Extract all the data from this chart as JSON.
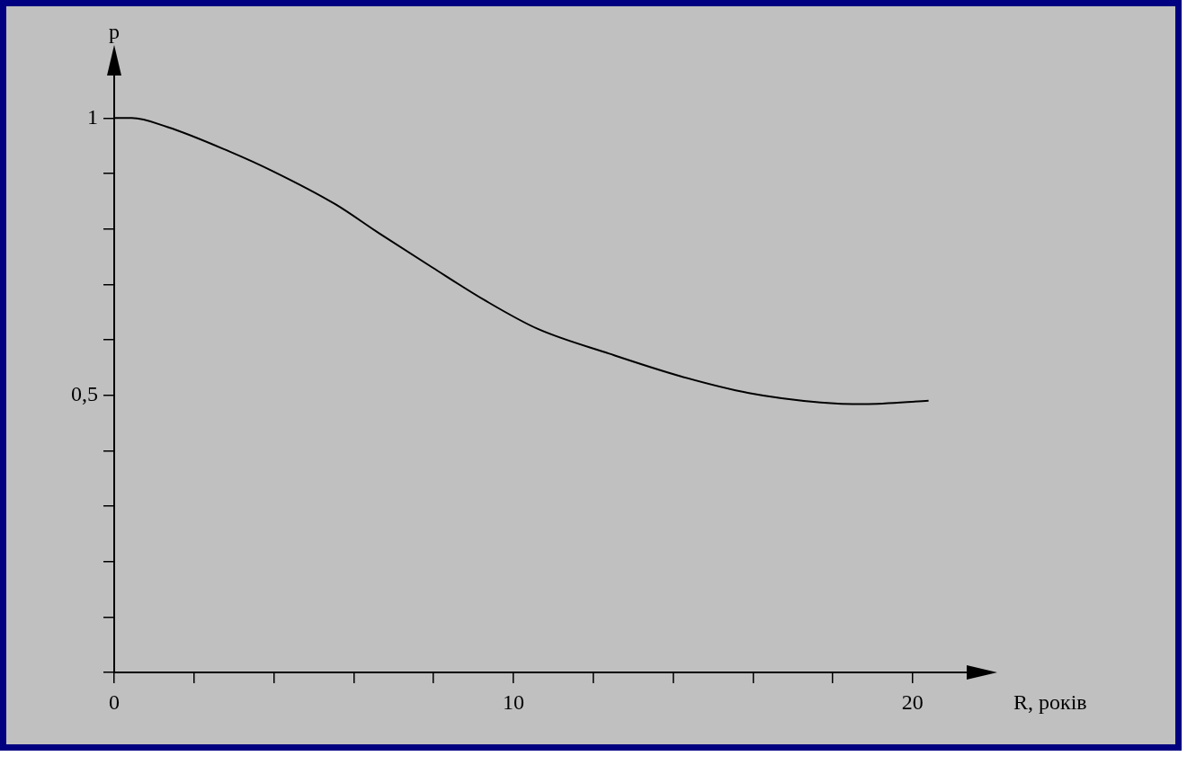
{
  "chart_data": {
    "type": "line",
    "xlabel": "R, років",
    "ylabel": "p",
    "x": [
      0,
      0.44,
      1.33,
      2.88,
      3.98,
      5.53,
      6.64,
      7.96,
      9.29,
      10.6,
      12.4,
      14.2,
      15.9,
      17.7,
      18.8,
      20.4
    ],
    "series": [
      {
        "color": "#000000",
        "values": [
          1.0,
          1.0,
          0.984,
          0.94,
          0.904,
          0.845,
          0.792,
          0.731,
          0.671,
          0.62,
          0.575,
          0.534,
          0.504,
          0.487,
          0.484,
          0.49
        ]
      }
    ],
    "xlim": [
      0,
      21.4
    ],
    "ylim": [
      0,
      1.08
    ],
    "xticks": [
      0,
      {
        "value": 2,
        "label": null
      },
      {
        "value": 4,
        "label": null
      },
      {
        "value": 6,
        "label": null
      },
      {
        "value": 8,
        "label": null
      },
      10,
      {
        "value": 12,
        "label": null
      },
      {
        "value": 14,
        "label": null
      },
      {
        "value": 16,
        "label": null
      },
      {
        "value": 18,
        "label": null
      },
      20
    ],
    "yticks": [
      {
        "value": 0,
        "label": null
      },
      {
        "value": 0.1,
        "label": null
      },
      {
        "value": 0.2,
        "label": null
      },
      {
        "value": 0.3,
        "label": null
      },
      {
        "value": 0.4,
        "label": null
      },
      {
        "value": 0.5,
        "label": "0,5"
      },
      {
        "value": 0.6,
        "label": null
      },
      {
        "value": 0.7,
        "label": null
      },
      {
        "value": 0.8,
        "label": null
      },
      {
        "value": 0.9,
        "label": null
      },
      {
        "value": 1,
        "label": "1"
      }
    ],
    "grid": false,
    "legend": false,
    "marker": "none",
    "line_style": "solid"
  }
}
